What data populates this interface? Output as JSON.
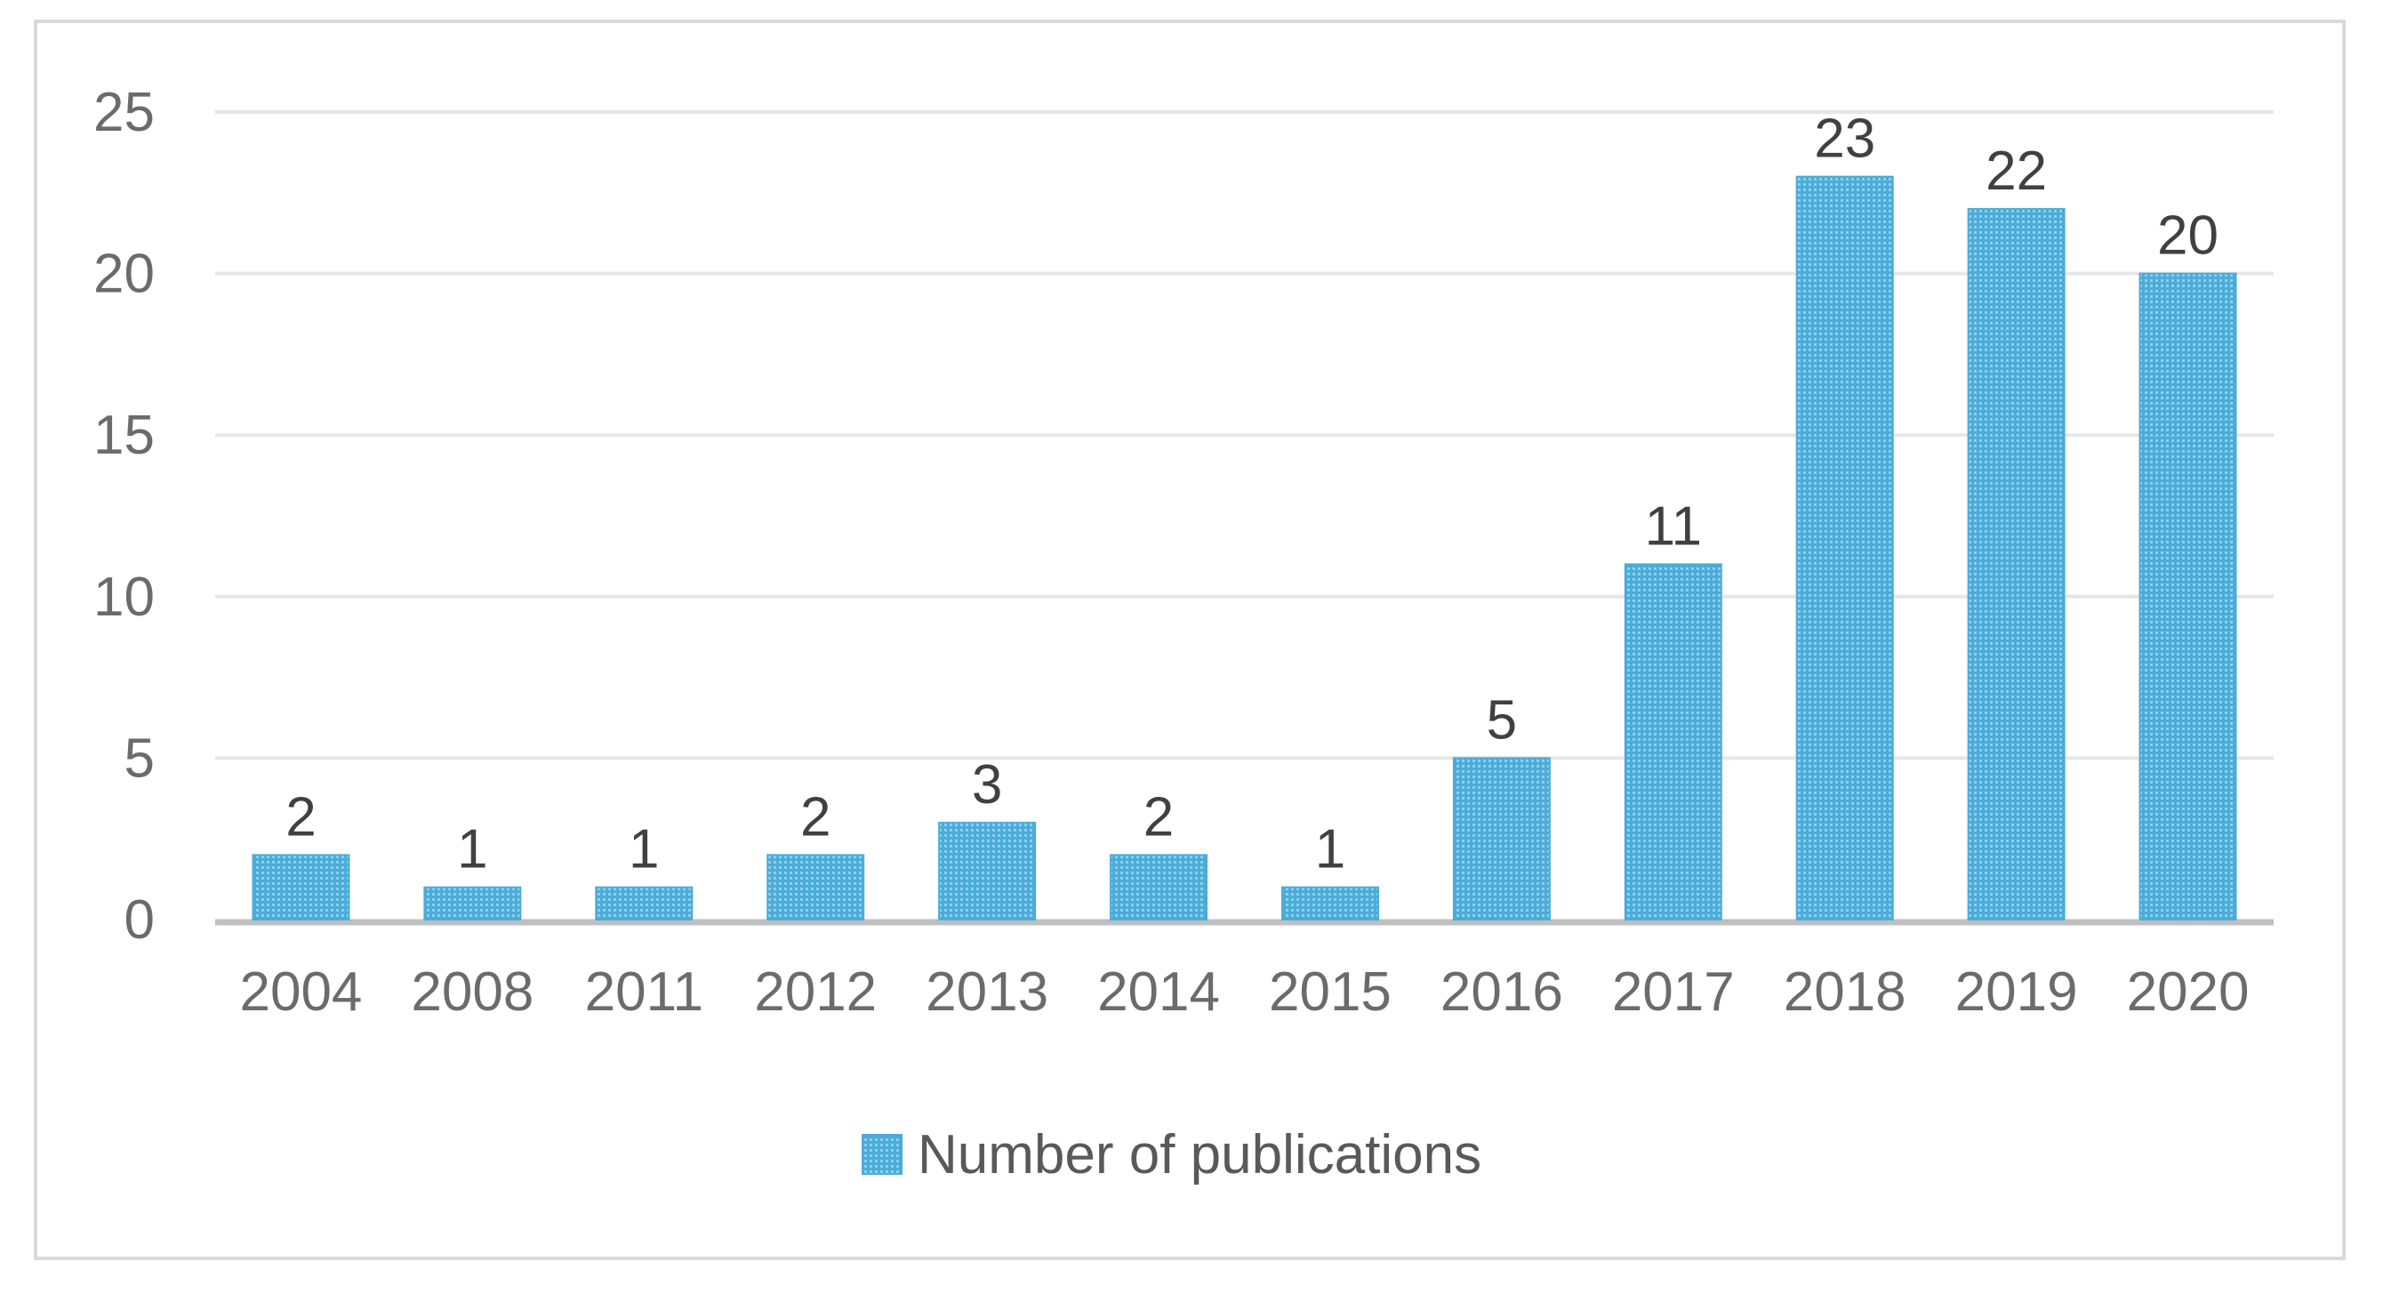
{
  "chart_data": {
    "type": "bar",
    "title": "",
    "xlabel": "",
    "ylabel": "",
    "categories": [
      "2004",
      "2008",
      "2011",
      "2012",
      "2013",
      "2014",
      "2015",
      "2016",
      "2017",
      "2018",
      "2019",
      "2020"
    ],
    "series": [
      {
        "name": "Number of publications",
        "values": [
          2,
          1,
          1,
          2,
          3,
          2,
          1,
          5,
          11,
          23,
          22,
          20
        ]
      }
    ],
    "ylim": [
      0,
      25
    ],
    "yticks": [
      0,
      5,
      10,
      15,
      20,
      25
    ],
    "grid": true,
    "data_labels": true,
    "legend_position": "bottom",
    "bar_color": "#4bacd8",
    "bar_pattern_color": "#8fd0ef"
  }
}
